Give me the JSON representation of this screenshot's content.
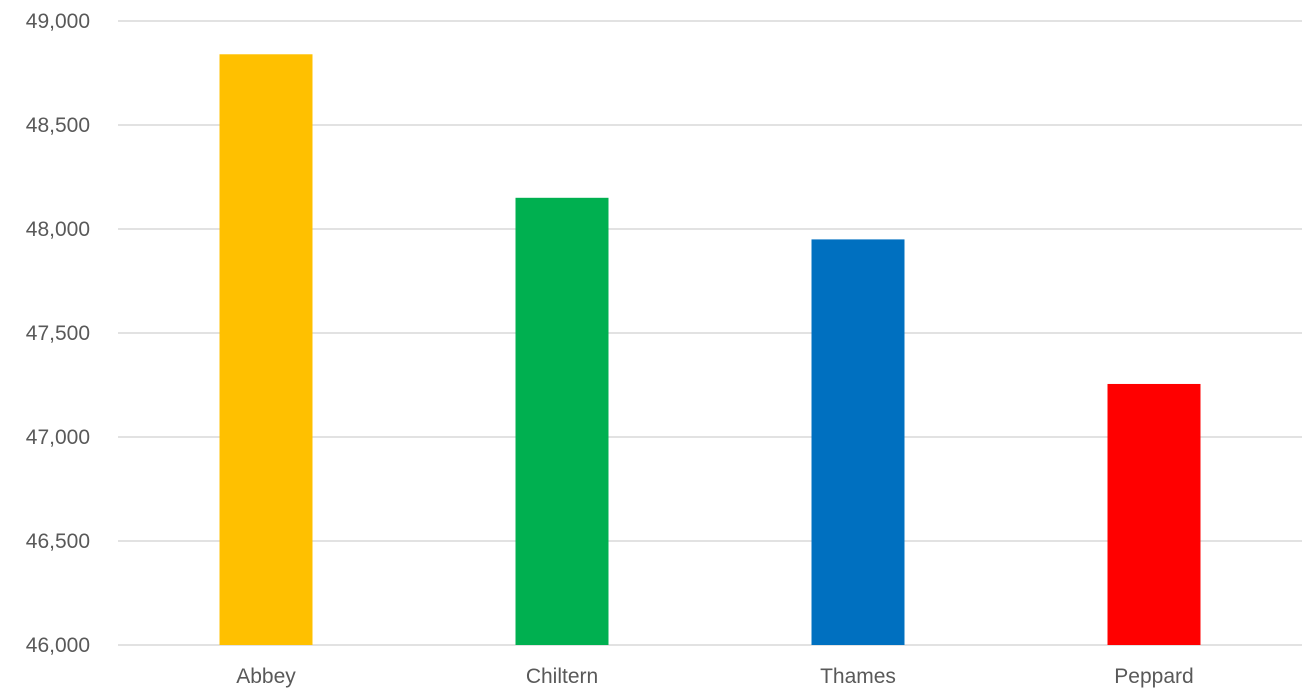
{
  "chart_data": {
    "type": "bar",
    "title": "",
    "xlabel": "",
    "ylabel": "",
    "categories": [
      "Abbey",
      "Chiltern",
      "Thames",
      "Peppard"
    ],
    "values": [
      48840,
      48150,
      47950,
      47255
    ],
    "colors": [
      "#FFC000",
      "#00B050",
      "#0070C0",
      "#FF0000"
    ],
    "ylim": [
      46000,
      49000
    ],
    "yticks": [
      46000,
      46500,
      47000,
      47500,
      48000,
      48500,
      49000
    ],
    "ytick_labels": [
      "46,000",
      "46,500",
      "47,000",
      "47,500",
      "48,000",
      "48,500",
      "49,000"
    ],
    "grid": true,
    "legend": "none"
  }
}
